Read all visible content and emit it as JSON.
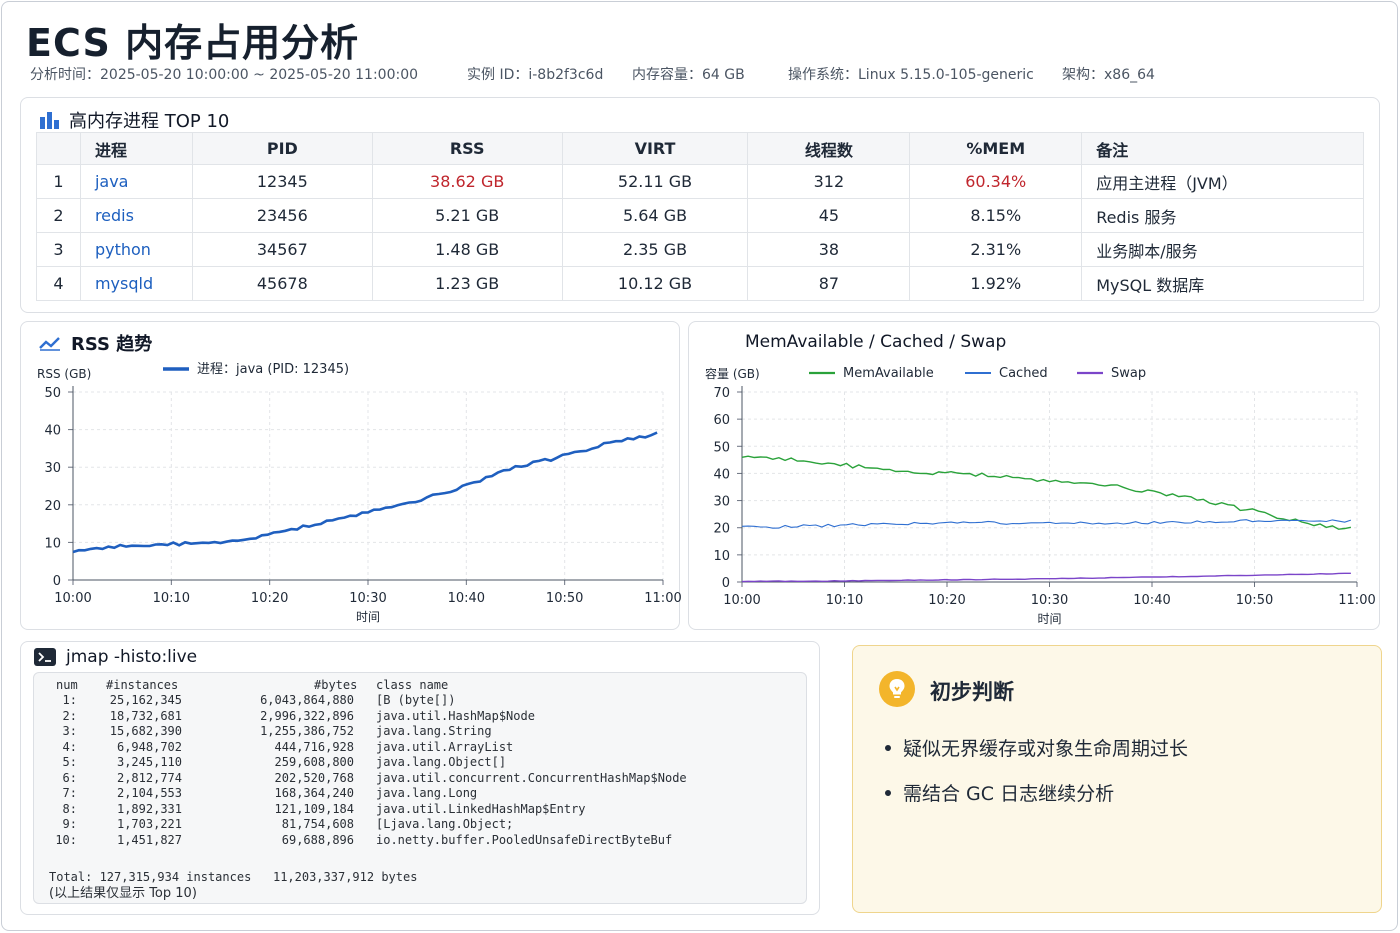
{
  "header": {
    "title": "ECS 内存占用分析",
    "time_range": "分析时间：2025-05-20 10:00:00  ~ 2025-05-20 11:00:00",
    "instance": "实例 ID：i-8b2f3c6d",
    "memory": "内存容量：64 GB",
    "os": "操作系统：Linux 5.15.0-105-generic",
    "arch": "架构：x86_64"
  },
  "top_processes": {
    "title": "高内存进程 TOP 10",
    "columns": [
      "",
      "进程",
      "PID",
      "RSS",
      "VIRT",
      "线程数",
      "%MEM",
      "备注"
    ],
    "rows": [
      {
        "rank": "1",
        "name": "java",
        "pid": "12345",
        "rss": "38.62 GB",
        "virt": "52.11 GB",
        "threads": "312",
        "mem": "60.34%",
        "note": "应用主进程（JVM）",
        "highlight": true
      },
      {
        "rank": "2",
        "name": "redis",
        "pid": "23456",
        "rss": "5.21 GB",
        "virt": "5.64 GB",
        "threads": "45",
        "mem": "8.15%",
        "note": "Redis 服务",
        "highlight": false
      },
      {
        "rank": "3",
        "name": "python",
        "pid": "34567",
        "rss": "1.48 GB",
        "virt": "2.35 GB",
        "threads": "38",
        "mem": "2.31%",
        "note": "业务脚本/服务",
        "highlight": false
      },
      {
        "rank": "4",
        "name": "mysqld",
        "pid": "45678",
        "rss": "1.23 GB",
        "virt": "10.12 GB",
        "threads": "87",
        "mem": "1.92%",
        "note": "MySQL 数据库",
        "highlight": false
      }
    ]
  },
  "rss_panel": {
    "title": "RSS 趋势"
  },
  "mem_panel": {
    "title": "MemAvailable / Cached / Swap"
  },
  "chart_data": [
    {
      "type": "line",
      "title": "RSS 趋势",
      "xlabel": "时间",
      "ylabel": "RSS (GB)",
      "x_ticks": [
        "10:00",
        "10:10",
        "10:20",
        "10:30",
        "10:40",
        "10:50",
        "11:00"
      ],
      "ylim": [
        0,
        50
      ],
      "y_ticks": [
        0,
        10,
        20,
        30,
        40,
        50
      ],
      "grid": true,
      "legend": "top",
      "series": [
        {
          "name": "进程：java (PID: 12345)",
          "color": "#1f5fbf",
          "x_minutes": [
            0,
            5,
            10,
            15,
            20,
            25,
            30,
            35,
            40,
            45,
            50,
            55,
            60
          ],
          "values": [
            7.5,
            9,
            9.5,
            10,
            12,
            15,
            18,
            21,
            25,
            30,
            33,
            37,
            39
          ]
        }
      ]
    },
    {
      "type": "line",
      "title": "MemAvailable / Cached / Swap",
      "xlabel": "时间",
      "ylabel": "容量 (GB)",
      "x_ticks": [
        "10:00",
        "10:10",
        "10:20",
        "10:30",
        "10:40",
        "10:50",
        "11:00"
      ],
      "ylim": [
        0,
        70
      ],
      "y_ticks": [
        0,
        10,
        20,
        30,
        40,
        50,
        60,
        70
      ],
      "grid": true,
      "legend": "top",
      "series": [
        {
          "name": "MemAvailable",
          "color": "#2aa23a",
          "x_minutes": [
            0,
            5,
            10,
            15,
            20,
            25,
            30,
            35,
            40,
            45,
            50,
            55,
            60
          ],
          "values": [
            46,
            45,
            43,
            41,
            40,
            39,
            37,
            36,
            33,
            30,
            26,
            22,
            19
          ]
        },
        {
          "name": "Cached",
          "color": "#2f6fd1",
          "x_minutes": [
            0,
            10,
            20,
            30,
            40,
            50,
            60
          ],
          "values": [
            20,
            21,
            22,
            21.5,
            22,
            22.5,
            22.5
          ]
        },
        {
          "name": "Swap",
          "color": "#7b45c9",
          "x_minutes": [
            0,
            10,
            20,
            30,
            40,
            50,
            60
          ],
          "values": [
            0.2,
            0.4,
            0.8,
            1.2,
            1.8,
            2.5,
            3.2
          ]
        }
      ]
    }
  ],
  "jmap": {
    "title": "jmap -histo:live",
    "header": {
      "num": "num",
      "instances": "#instances",
      "bytes": "#bytes",
      "class": "class name"
    },
    "rows": [
      {
        "num": "1:",
        "instances": "25,162,345",
        "bytes": "6,043,864,880",
        "class": "[B (byte[])"
      },
      {
        "num": "2:",
        "instances": "18,732,681",
        "bytes": "2,996,322,896",
        "class": "java.util.HashMap$Node"
      },
      {
        "num": "3:",
        "instances": "15,682,390",
        "bytes": "1,255,386,752",
        "class": "java.lang.String"
      },
      {
        "num": "4:",
        "instances": "6,948,702",
        "bytes": "444,716,928",
        "class": "java.util.ArrayList"
      },
      {
        "num": "5:",
        "instances": "3,245,110",
        "bytes": "259,608,800",
        "class": "java.lang.Object[]"
      },
      {
        "num": "6:",
        "instances": "2,812,774",
        "bytes": "202,520,768",
        "class": "java.util.concurrent.ConcurrentHashMap$Node"
      },
      {
        "num": "7:",
        "instances": "2,104,553",
        "bytes": "168,364,240",
        "class": "java.lang.Long"
      },
      {
        "num": "8:",
        "instances": "1,892,331",
        "bytes": "121,109,184",
        "class": "java.util.LinkedHashMap$Entry"
      },
      {
        "num": "9:",
        "instances": "1,703,221",
        "bytes": "81,754,608",
        "class": "[Ljava.lang.Object;"
      },
      {
        "num": "10:",
        "instances": "1,451,827",
        "bytes": "69,688,896",
        "class": "io.netty.buffer.PooledUnsafeDirectByteBuf"
      }
    ],
    "total": "Total: 127,315,934 instances   11,203,337,912 bytes",
    "note": "(以上结果仅显示 Top 10)"
  },
  "insight": {
    "title": "初步判断",
    "bullets": [
      "疑似无界缓存或对象生命周期过长",
      "需结合 GC 日志继续分析"
    ]
  },
  "colors": {
    "accent_blue": "#1d5fbf",
    "alert_red": "#c0262d",
    "insight_bg": "#fdf8e8",
    "bulb": "#f3b52b"
  }
}
